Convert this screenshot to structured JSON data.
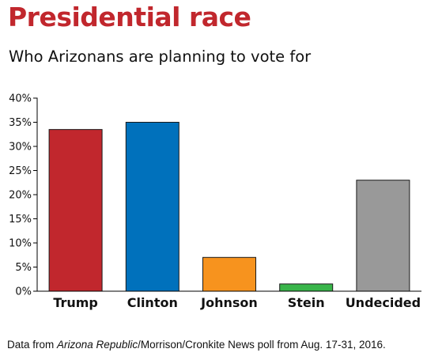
{
  "title": "Presidential race",
  "subtitle": "Who Arizonans are planning to vote for",
  "note": {
    "prefix": "Data from ",
    "source_italic": "Arizona Republic",
    "suffix": "/Morrison/Cronkite News poll from Aug. 17-31, 2016."
  },
  "chart_data": {
    "type": "bar",
    "title": "Presidential race",
    "subtitle": "Who Arizonans are planning to vote for",
    "xlabel": "",
    "ylabel": "",
    "categories": [
      "Trump",
      "Clinton",
      "Johnson",
      "Stein",
      "Undecided"
    ],
    "values": [
      33.5,
      35,
      7,
      1.5,
      23
    ],
    "colors": [
      "#c1272d",
      "#0071bc",
      "#f7931e",
      "#39b54a",
      "#999999"
    ],
    "ylim": [
      0,
      40
    ],
    "yticks": [
      0,
      5,
      10,
      15,
      20,
      25,
      30,
      35,
      40
    ],
    "ytick_labels": [
      "0%",
      "5%",
      "10%",
      "15%",
      "20%",
      "25%",
      "30%",
      "35%",
      "40%"
    ],
    "grid": false,
    "legend": "none"
  }
}
